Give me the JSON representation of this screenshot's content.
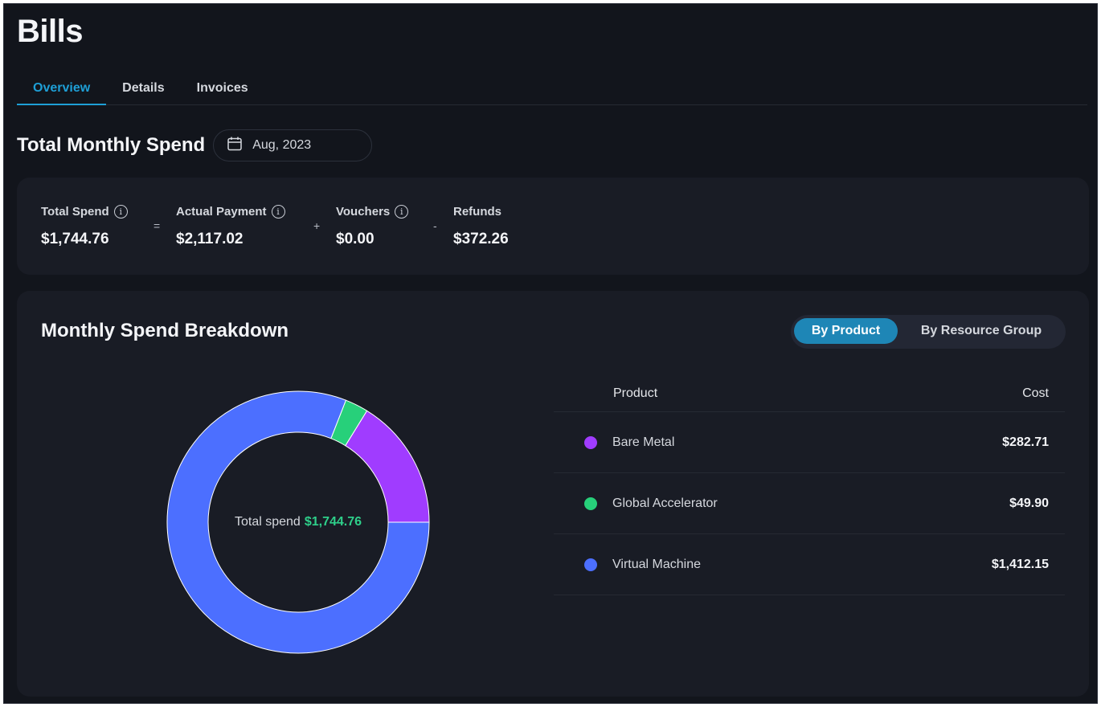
{
  "page": {
    "title": "Bills"
  },
  "tabs": [
    {
      "label": "Overview",
      "active": true
    },
    {
      "label": "Details",
      "active": false
    },
    {
      "label": "Invoices",
      "active": false
    }
  ],
  "total_monthly_spend": {
    "title": "Total Monthly Spend",
    "date": "Aug, 2023",
    "calendar_icon": "calendar-icon"
  },
  "summary": {
    "metrics": [
      {
        "label": "Total Spend",
        "value": "$1,744.76",
        "info": true
      },
      {
        "label": "Actual Payment",
        "value": "$2,117.02",
        "info": true
      },
      {
        "label": "Vouchers",
        "value": "$0.00",
        "info": true
      },
      {
        "label": "Refunds",
        "value": "$372.26",
        "info": false
      }
    ],
    "operators": [
      "=",
      "+",
      "-"
    ],
    "info_glyph": "i"
  },
  "breakdown": {
    "title": "Monthly Spend Breakdown",
    "toggle": {
      "by_product": "By Product",
      "by_resource_group": "By Resource Group",
      "selected": "By Product"
    },
    "center_label": "Total spend",
    "center_value": "$1,744.76",
    "table": {
      "headers": {
        "product": "Product",
        "cost": "Cost"
      },
      "rows": [
        {
          "product": "Bare Metal",
          "cost": "$282.71",
          "color": "#a03cff"
        },
        {
          "product": "Global Accelerator",
          "cost": "$49.90",
          "color": "#27d07a"
        },
        {
          "product": "Virtual Machine",
          "cost": "$1,412.15",
          "color": "#4c6fff"
        }
      ]
    }
  },
  "chart_data": {
    "type": "pie",
    "categories": [
      "Bare Metal",
      "Global Accelerator",
      "Virtual Machine"
    ],
    "values": [
      282.71,
      49.9,
      1412.15
    ],
    "colors": [
      "#a03cff",
      "#27d07a",
      "#4c6fff"
    ],
    "donut": true,
    "start_angle": "right, counter-clockwise"
  }
}
